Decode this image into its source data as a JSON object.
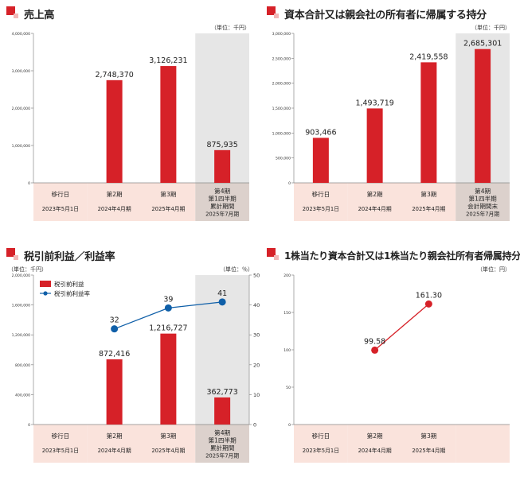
{
  "colors": {
    "bar": "#d62128",
    "line": "#0f5fa8",
    "line_red": "#d62128",
    "category_bg": "#fae3dc",
    "highlight_bg": "#e6e6e6",
    "highlight_cat_bg": "#dcd1cc",
    "title_square": "#d62128"
  },
  "panels": [
    {
      "title": "売上高",
      "unit": "（単位：千円）",
      "legend": [],
      "chart_data": {
        "type": "bar",
        "title": "売上高",
        "categories": [
          {
            "name": "移行日",
            "date": "2023年5月1日",
            "lines": []
          },
          {
            "name": "第2期",
            "date": "2024年4月期",
            "lines": []
          },
          {
            "name": "第3期",
            "date": "2025年4月期",
            "lines": []
          },
          {
            "name": "第4期",
            "date": "2025年7月期",
            "lines": [
              "第1四半期",
              "累計期間"
            ]
          }
        ],
        "values": [
          null,
          2748370,
          3126231,
          875935
        ],
        "value_labels": [
          "",
          "2,748,370",
          "3,126,231",
          "875,935"
        ],
        "ylim": [
          0,
          4000000
        ],
        "yticks": [
          0,
          1000000,
          2000000,
          3000000,
          4000000
        ],
        "ytick_labels": [
          "0",
          "1,000,000",
          "2,000,000",
          "3,000,000",
          "4,000,000"
        ],
        "highlight_last": true
      }
    },
    {
      "title": "資本合計又は親会社の所有者に帰属する持分",
      "unit": "（単位：千円）",
      "legend": [],
      "chart_data": {
        "type": "bar",
        "title": "資本合計又は親会社の所有者に帰属する持分",
        "categories": [
          {
            "name": "移行日",
            "date": "2023年5月1日",
            "lines": []
          },
          {
            "name": "第2期",
            "date": "2024年4月期",
            "lines": []
          },
          {
            "name": "第3期",
            "date": "2025年4月期",
            "lines": []
          },
          {
            "name": "第4期",
            "date": "2025年7月期",
            "lines": [
              "第1四半期",
              "会計期間末"
            ]
          }
        ],
        "values": [
          903466,
          1493719,
          2419558,
          2685301
        ],
        "value_labels": [
          "903,466",
          "1,493,719",
          "2,419,558",
          "2,685,301"
        ],
        "ylim": [
          0,
          3000000
        ],
        "yticks": [
          0,
          500000,
          1000000,
          1500000,
          2000000,
          2500000,
          3000000
        ],
        "ytick_labels": [
          "0",
          "500,000",
          "1,000,000",
          "1,500,000",
          "2,000,000",
          "2,500,000",
          "3,000,000"
        ],
        "highlight_last": true
      }
    },
    {
      "title": "税引前利益／利益率",
      "unit": "（単位：千円）",
      "unit_right": "（単位：％）",
      "legend": [
        {
          "kind": "bar",
          "label": "税引前利益"
        },
        {
          "kind": "line",
          "label": "税引前利益率"
        }
      ],
      "chart_data": {
        "type": "bar",
        "title": "税引前利益／利益率",
        "categories": [
          {
            "name": "移行日",
            "date": "2023年5月1日",
            "lines": []
          },
          {
            "name": "第2期",
            "date": "2024年4月期",
            "lines": []
          },
          {
            "name": "第3期",
            "date": "2025年4月期",
            "lines": []
          },
          {
            "name": "第4期",
            "date": "2025年7月期",
            "lines": [
              "第1四半期",
              "累計期間"
            ]
          }
        ],
        "series": [
          {
            "name": "税引前利益",
            "type": "bar",
            "axis": "left",
            "values": [
              null,
              872416,
              1216727,
              362773
            ],
            "value_labels": [
              "",
              "872,416",
              "1,216,727",
              "362,773"
            ]
          },
          {
            "name": "税引前利益率",
            "type": "line",
            "axis": "right",
            "values": [
              null,
              32,
              39,
              41
            ],
            "value_labels": [
              "",
              "32",
              "39",
              "41"
            ]
          }
        ],
        "ylim": [
          0,
          2000000
        ],
        "yticks": [
          0,
          400000,
          800000,
          1200000,
          1600000,
          2000000
        ],
        "ytick_labels": [
          "0",
          "400,000",
          "800,000",
          "1,200,000",
          "1,600,000",
          "2,000,000"
        ],
        "y2lim": [
          0,
          50
        ],
        "y2ticks": [
          0,
          10,
          20,
          30,
          40,
          50
        ],
        "y2tick_labels": [
          "0",
          "10",
          "20",
          "30",
          "40",
          "50"
        ],
        "highlight_last": true
      }
    },
    {
      "title": "1株当たり資本合計又は1株当たり親会社所有者帰属持分",
      "unit": "（単位：円）",
      "legend": [],
      "chart_data": {
        "type": "line",
        "title": "1株当たり資本合計又は1株当たり親会社所有者帰属持分",
        "categories": [
          {
            "name": "移行日",
            "date": "2023年5月1日",
            "lines": []
          },
          {
            "name": "第2期",
            "date": "2024年4月期",
            "lines": []
          },
          {
            "name": "第3期",
            "date": "2025年4月期",
            "lines": []
          },
          {
            "name": "",
            "date": "",
            "lines": []
          }
        ],
        "values": [
          null,
          99.58,
          161.3,
          null
        ],
        "value_labels": [
          "",
          "99.58",
          "161.30",
          ""
        ],
        "ylim": [
          0,
          200
        ],
        "yticks": [
          0,
          50,
          100,
          150,
          200
        ],
        "ytick_labels": [
          "0",
          "50",
          "100",
          "150",
          "200"
        ],
        "highlight_last": false
      }
    }
  ]
}
